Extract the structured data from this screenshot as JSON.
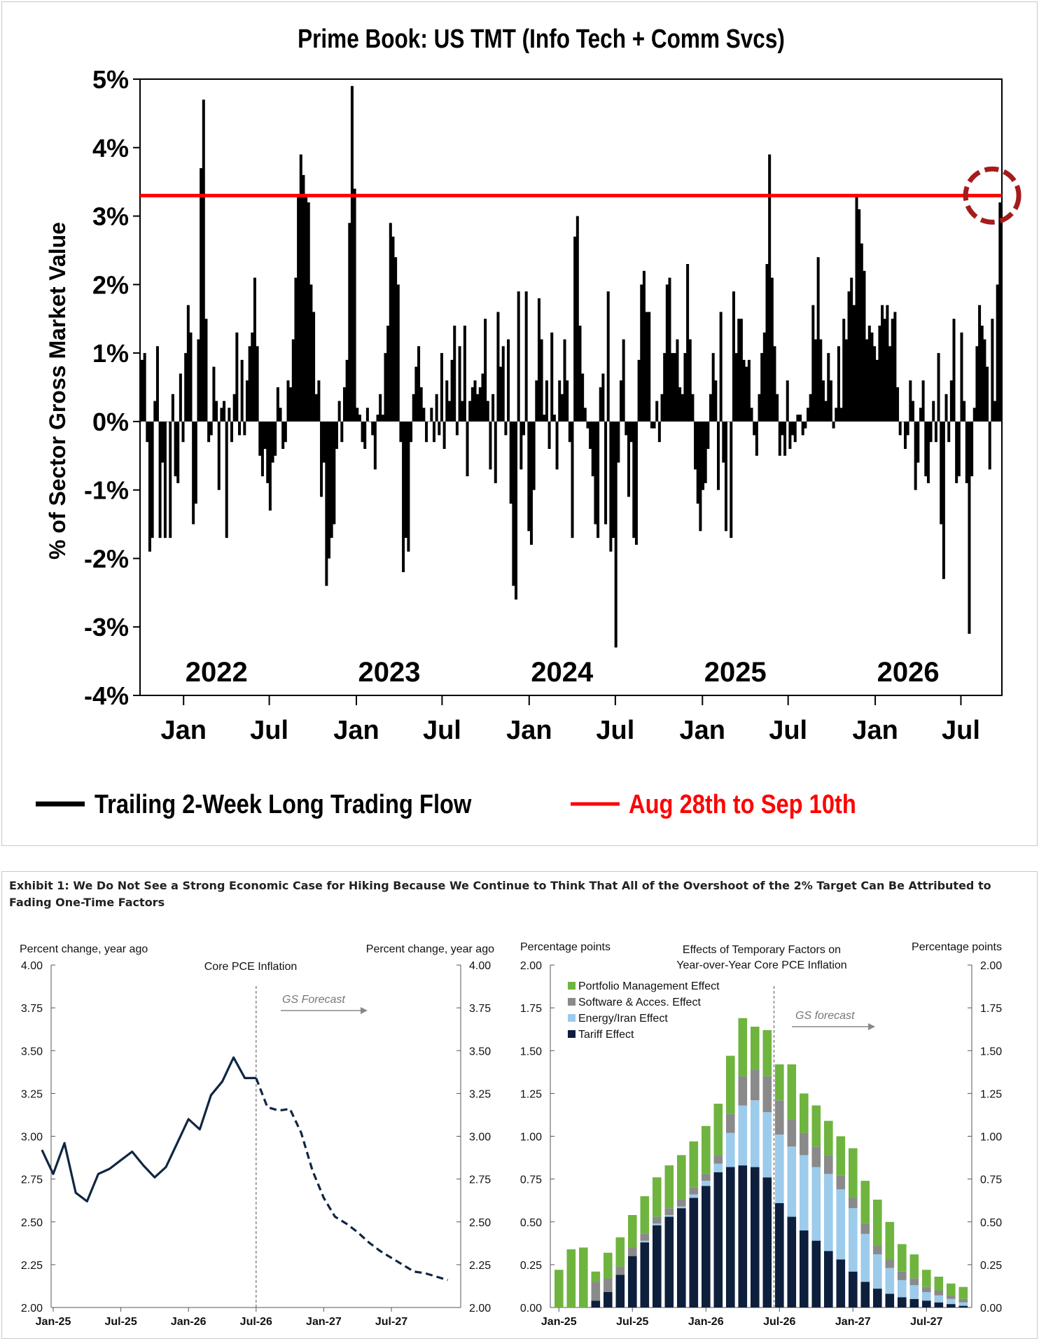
{
  "top": {
    "title": "Prime Book: US TMT (Info Tech + Comm Svcs)",
    "ylabel": "% of Sector Gross Market Value",
    "legend": [
      {
        "label": "Trailing 2-Week Long Trading Flow",
        "color": "#000000"
      },
      {
        "label": "Aug 28th to Sep 10th",
        "color": "#ff0000"
      }
    ]
  },
  "bottom": {
    "exhibit_title": "Exhibit 1: We Do Not See a Strong Economic Case for Hiking Because We Continue to Think That All of the Overshoot of the 2% Target Can Be Attributed to Fading One-Time Factors"
  },
  "chart_data": [
    {
      "type": "bar",
      "title": "Prime Book: US TMT (Info Tech + Comm Svcs)",
      "ylabel": "% of Sector Gross Market Value",
      "ylim": [
        -4,
        5
      ],
      "y_ticks": [
        "5%",
        "4%",
        "3%",
        "2%",
        "1%",
        "0%",
        "-1%",
        "-2%",
        "-3%",
        "-4%"
      ],
      "x_tick_labels": [
        "Jan",
        "Jul",
        "Jan",
        "Jul",
        "Jan",
        "Jul",
        "Jan",
        "Jul",
        "Jan",
        "Jul"
      ],
      "year_labels": [
        "2022",
        "2023",
        "2024",
        "2025",
        "2026"
      ],
      "x_start": "2021-10-01",
      "reference_line": {
        "value": 3.3,
        "label": "Aug 28th to Sep 10th",
        "color": "#ff0000"
      },
      "highlight": {
        "date": "2026-09-05",
        "value": 3.3,
        "marker": "dashed-circle",
        "color": "#a51c1c"
      },
      "series": [
        {
          "name": "Trailing 2-Week Long Trading Flow",
          "color": "#000000",
          "values": [
            [
              0.9,
              1.0,
              -0.3,
              -1.9,
              -1.7,
              0.3,
              1.1,
              -1.7,
              -0.6,
              -1.7,
              0.0,
              -1.7,
              0.4,
              -0.8,
              -0.9,
              0.7,
              -0.3,
              1.0,
              1.7,
              1.3,
              -1.5,
              -1.2,
              1.2,
              3.7,
              4.7,
              1.5,
              -0.3,
              -0.2,
              0.8,
              0.3,
              -1.0,
              0.2,
              0.3,
              -1.7,
              0.2,
              -0.3,
              0.4,
              1.3,
              -0.2,
              0.9,
              -0.2,
              0.6,
              1.1,
              1.3,
              2.1,
              1.1,
              -0.5,
              -0.8,
              -0.4,
              -0.9,
              -1.3,
              -0.6,
              -0.5,
              0.5,
              0.2,
              -0.4,
              -0.3,
              0.6,
              0.5,
              1.2,
              2.1,
              3.3,
              3.9,
              3.6,
              3.3,
              3.2,
              2.0,
              1.6,
              0.4,
              0.6,
              -1.1,
              -0.6,
              -2.4,
              -2.0,
              -1.7,
              -1.5,
              -0.4,
              0.3,
              -0.3,
              0.5,
              0.9,
              2.9,
              4.9,
              3.4,
              0.2,
              0.1,
              -0.3,
              -0.4,
              0.2,
              0.0,
              -0.2,
              -0.7,
              0.1,
              0.4,
              0.1,
              1.0,
              1.4,
              2.9,
              2.7,
              2.4,
              2.0,
              -0.3,
              -2.2,
              -1.7,
              -1.9,
              -0.3,
              0.4,
              0.8,
              1.1,
              0.5,
              0.2,
              -0.3,
              0.0,
              0.2,
              -0.3,
              0.4,
              -0.2,
              1.0,
              -0.4,
              0.6,
              0.3,
              0.9,
              1.4,
              -0.2,
              1.1,
              0.3,
              1.4,
              -0.8,
              0.3,
              0.5,
              0.6,
              0.4,
              0.5,
              0.7,
              1.5,
              0.3,
              -0.7,
              0.4,
              -0.9,
              1.6,
              0.8,
              1.1,
              -0.2,
              1.2,
              -1.2,
              -2.4,
              -2.6,
              1.9,
              -0.7,
              -0.2,
              1.9,
              -1.6,
              -1.8,
              -1.0,
              0.6,
              1.8,
              1.2,
              0.1,
              0.6,
              -0.4,
              1.3,
              0.1,
              -0.7,
              0.6,
              0.4,
              1.2,
              0.6,
              -0.3,
              -1.7,
              2.7,
              3.0,
              1.4,
              0.7,
              0.2,
              -0.1,
              -0.4,
              -0.8,
              -1.5,
              -1.7,
              0.5,
              0.7,
              -1.5,
              1.9,
              -1.9,
              -1.7,
              -3.3,
              -0.6,
              0.6,
              1.2,
              -0.2,
              -1.1,
              -0.3,
              -1.7,
              -1.8,
              0.9,
              2.0,
              2.2,
              1.6,
              1.6,
              -0.1,
              -0.1,
              0.3,
              -0.3,
              0.4,
              1.0,
              2.0,
              2.1,
              1.0,
              1.0,
              1.2,
              0.5,
              0.4,
              1.0,
              2.3,
              1.2,
              0.4,
              -0.7,
              -1.2,
              -1.6,
              -1.0,
              -0.9,
              -0.4,
              0.4,
              1.0,
              0.6,
              -1.0,
              1.6,
              -0.6,
              -1.6,
              0.0,
              -1.7,
              1.9,
              1.0,
              1.5,
              1.5,
              0.9,
              0.8,
              0.9,
              0.2,
              -0.2,
              -0.5,
              0.4,
              1.0,
              1.3,
              2.3,
              3.9,
              2.1,
              1.1,
              0.4,
              -0.5,
              -0.2,
              -0.5,
              0.6,
              -0.4,
              -0.2,
              -0.3,
              0.1,
              0.1,
              -0.2,
              -0.1,
              0.2,
              0.4,
              1.7,
              1.2,
              2.4,
              1.2,
              0.6,
              0.3,
              1.0,
              0.6,
              -0.1,
              0.2,
              1.1,
              0.2,
              1.5,
              1.2,
              1.9,
              2.1,
              1.7,
              3.3,
              3.1,
              2.6,
              2.2,
              1.2,
              1.4,
              1.3,
              1.1,
              0.9,
              1.4,
              1.7,
              1.5,
              1.7,
              1.1,
              1.5,
              1.6,
              0.5,
              -0.2,
              0.0,
              -0.4,
              -0.2,
              0.6,
              0.3,
              -1.0,
              -0.6,
              0.2,
              0.6,
              -0.8,
              -0.9,
              -0.3,
              0.3,
              -0.3,
              1.0,
              -1.5,
              -2.3,
              0.4,
              -0.3,
              0.6,
              1.5,
              -0.9,
              -0.8,
              1.3,
              0.3,
              -0.9,
              -3.1,
              -0.8,
              0.2,
              1.1,
              1.7,
              1.4,
              1.2,
              0.8,
              -0.7,
              1.5,
              0.3,
              2.0,
              3.2
            ]
          ]
        }
      ]
    },
    {
      "type": "line",
      "title": "Core PCE Inflation",
      "ylabel": "Percent change, year ago",
      "ylabel_right": "Percent change, year ago",
      "ylim": [
        2.0,
        4.0
      ],
      "y_ticks": [
        "4.00",
        "3.75",
        "3.50",
        "3.25",
        "3.00",
        "2.75",
        "2.50",
        "2.25",
        "2.00"
      ],
      "x_tick_labels": [
        "Jan-25",
        "Jul-25",
        "Jan-26",
        "Jul-26",
        "Jan-27",
        "Jul-27"
      ],
      "x_start": "2025-01",
      "forecast_label": "GS Forecast",
      "forecast_start": "2026-07",
      "series": [
        {
          "name": "actual",
          "style": "solid",
          "x": [
            "2024-12",
            "2025-01",
            "2025-02",
            "2025-03",
            "2025-04",
            "2025-05",
            "2025-06",
            "2025-07",
            "2025-08",
            "2025-09",
            "2025-10",
            "2025-11",
            "2025-12",
            "2026-01",
            "2026-02",
            "2026-03",
            "2026-04",
            "2026-05",
            "2026-06",
            "2026-07"
          ],
          "values": [
            2.92,
            2.78,
            2.96,
            2.67,
            2.62,
            2.78,
            2.81,
            2.86,
            2.91,
            2.83,
            2.76,
            2.82,
            2.96,
            3.1,
            3.04,
            3.24,
            3.32,
            3.46,
            3.34,
            3.34
          ]
        },
        {
          "name": "forecast",
          "style": "dashed",
          "x": [
            "2026-07",
            "2026-08",
            "2026-09",
            "2026-10",
            "2026-11",
            "2026-12",
            "2027-01",
            "2027-02",
            "2027-03",
            "2027-04",
            "2027-05",
            "2027-06",
            "2027-07",
            "2027-08",
            "2027-09",
            "2027-10",
            "2027-11",
            "2027-12"
          ],
          "values": [
            3.34,
            3.17,
            3.15,
            3.16,
            3.02,
            2.8,
            2.64,
            2.53,
            2.49,
            2.44,
            2.38,
            2.33,
            2.29,
            2.25,
            2.21,
            2.2,
            2.18,
            2.16
          ]
        }
      ]
    },
    {
      "type": "bar",
      "stacked": true,
      "title": "Effects of Temporary Factors on Year-over-Year Core PCE Inflation",
      "title_lines": [
        "Effects of Temporary Factors on",
        "Year-over-Year Core PCE Inflation"
      ],
      "ylabel": "Percentage points",
      "ylabel_right": "Percentage points",
      "ylim": [
        0,
        2.0
      ],
      "y_ticks": [
        "2.00",
        "1.75",
        "1.50",
        "1.25",
        "1.00",
        "0.75",
        "0.50",
        "0.25",
        "0.00"
      ],
      "x_tick_labels": [
        "Jan-25",
        "Jul-25",
        "Jan-26",
        "Jul-26",
        "Jan-27",
        "Jul-27"
      ],
      "x_start": "2025-01",
      "forecast_label": "GS forecast",
      "forecast_start": "2026-07",
      "categories": [
        "2025-01",
        "2025-02",
        "2025-03",
        "2025-04",
        "2025-05",
        "2025-06",
        "2025-07",
        "2025-08",
        "2025-09",
        "2025-10",
        "2025-11",
        "2025-12",
        "2026-01",
        "2026-02",
        "2026-03",
        "2026-04",
        "2026-05",
        "2026-06",
        "2026-07",
        "2026-08",
        "2026-09",
        "2026-10",
        "2026-11",
        "2026-12",
        "2027-01",
        "2027-02",
        "2027-03",
        "2027-04",
        "2027-05",
        "2027-06",
        "2027-07",
        "2027-08",
        "2027-09",
        "2027-10"
      ],
      "series": [
        {
          "name": "Tariff Effect",
          "color": "#0d1f3c",
          "values": [
            0,
            0,
            0,
            0.04,
            0.09,
            0.19,
            0.3,
            0.38,
            0.48,
            0.53,
            0.58,
            0.64,
            0.71,
            0.79,
            0.82,
            0.83,
            0.82,
            0.76,
            0.61,
            0.53,
            0.45,
            0.39,
            0.33,
            0.28,
            0.21,
            0.15,
            0.11,
            0.08,
            0.06,
            0.05,
            0.04,
            0.03,
            0.02,
            0.01
          ]
        },
        {
          "name": "Energy/Iran Effect",
          "color": "#9ccbeb",
          "values": [
            0,
            0,
            0,
            0,
            0,
            0,
            0,
            0.01,
            0.01,
            0.01,
            0.01,
            0.02,
            0.03,
            0.05,
            0.2,
            0.35,
            0.39,
            0.38,
            0.4,
            0.41,
            0.44,
            0.43,
            0.45,
            0.41,
            0.37,
            0.28,
            0.2,
            0.15,
            0.1,
            0.08,
            0.05,
            0.04,
            0.03,
            0.02
          ]
        },
        {
          "name": "Software & Acces. Effect",
          "color": "#8a8a8a",
          "values": [
            0,
            0,
            0,
            0.11,
            0.08,
            0.05,
            0.05,
            0.04,
            0.04,
            0.04,
            0.04,
            0.04,
            0.04,
            0.05,
            0.11,
            0.17,
            0.18,
            0.21,
            0.2,
            0.16,
            0.13,
            0.12,
            0.11,
            0.08,
            0.06,
            0.06,
            0.05,
            0.05,
            0.05,
            0.04,
            0.03,
            0.03,
            0.02,
            0.02
          ]
        },
        {
          "name": "Portfolio Management Effect",
          "color": "#6fb43f",
          "values": [
            0.22,
            0.34,
            0.35,
            0.06,
            0.15,
            0.17,
            0.19,
            0.22,
            0.23,
            0.25,
            0.26,
            0.27,
            0.28,
            0.3,
            0.34,
            0.34,
            0.25,
            0.27,
            0.21,
            0.32,
            0.23,
            0.24,
            0.2,
            0.23,
            0.29,
            0.25,
            0.27,
            0.22,
            0.16,
            0.14,
            0.1,
            0.08,
            0.07,
            0.07
          ]
        }
      ]
    }
  ]
}
